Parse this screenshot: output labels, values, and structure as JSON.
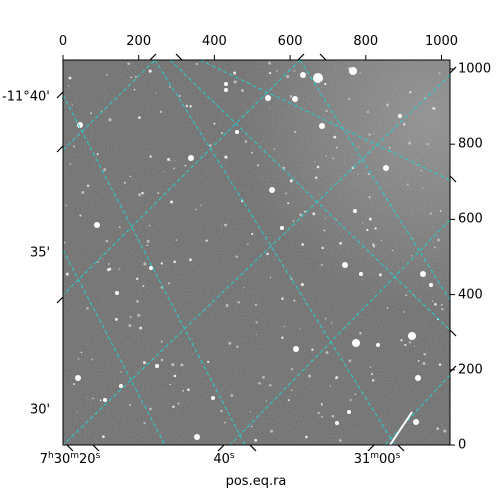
{
  "image": {
    "description_colors": {
      "background_sky": "#6a6a6a",
      "grid": "#28cccc",
      "star": "#ffffff",
      "frame": "#000000"
    }
  },
  "axes": {
    "top_ticks": [
      "0",
      "200",
      "400",
      "600",
      "800",
      "1000"
    ],
    "right_ticks": [
      "0",
      "200",
      "400",
      "600",
      "800",
      "1000"
    ],
    "left_ticks": [
      "-11°40'",
      "35'",
      "30'"
    ],
    "bottom_ticks": [
      {
        "h": "7",
        "hu": "h",
        "m": "30",
        "mu": "m",
        "s": "20",
        "su": "s"
      },
      {
        "s": "40",
        "su": "s"
      },
      {
        "m": "31",
        "mu": "m",
        "s": "00",
        "su": "s"
      }
    ],
    "xlabel": "pos.eq.ra"
  }
}
